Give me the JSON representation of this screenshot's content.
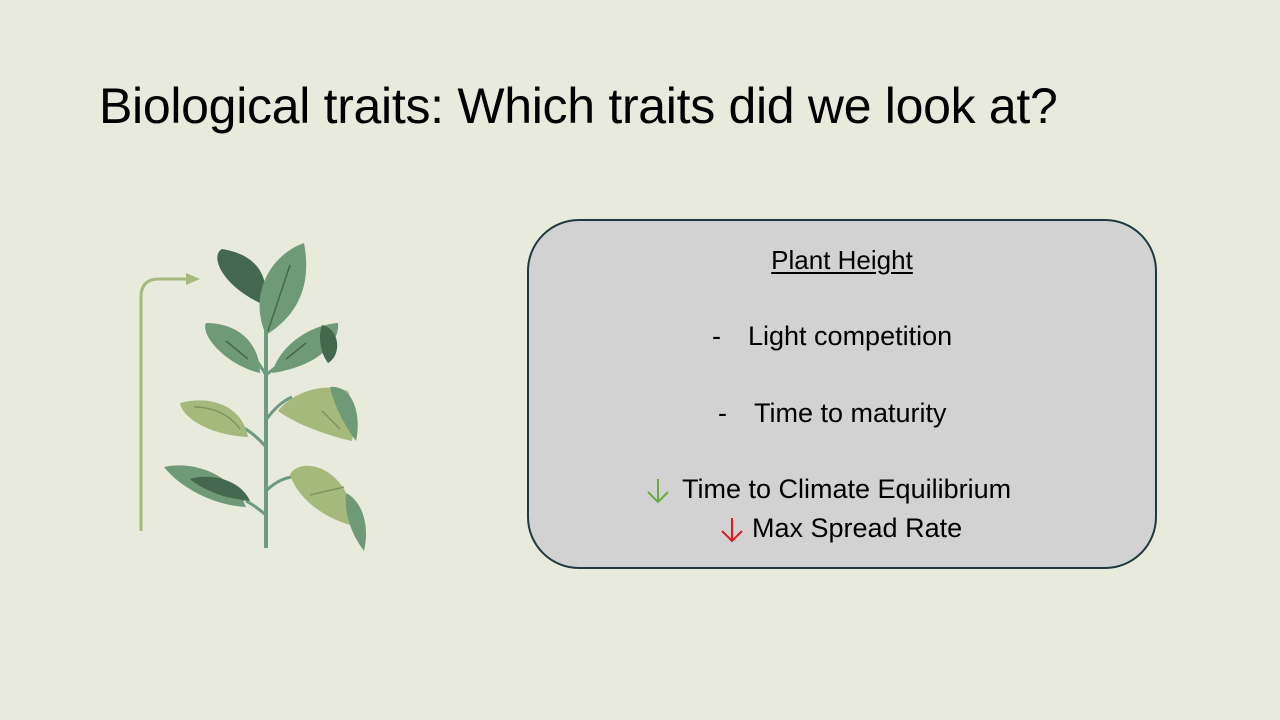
{
  "slide": {
    "title": "Biological traits: Which traits did we look at?"
  },
  "illustration": {
    "icon": "plant-growth-icon"
  },
  "card": {
    "heading": "Plant Height",
    "bullets": [
      {
        "marker": "-",
        "text": "Light competition"
      },
      {
        "marker": "-",
        "text": "Time to maturity"
      }
    ],
    "effects": [
      {
        "direction": "down",
        "color": "#6aac3e",
        "text": "Time to Climate Equilibrium"
      },
      {
        "direction": "down",
        "color": "#e11b22",
        "text": "Max Spread Rate"
      }
    ]
  },
  "colors": {
    "background": "#e8eadc",
    "card_fill": "#d2d2d2",
    "card_border": "#1e3a40",
    "down_green": "#6aac3e",
    "down_red": "#e11b22"
  }
}
